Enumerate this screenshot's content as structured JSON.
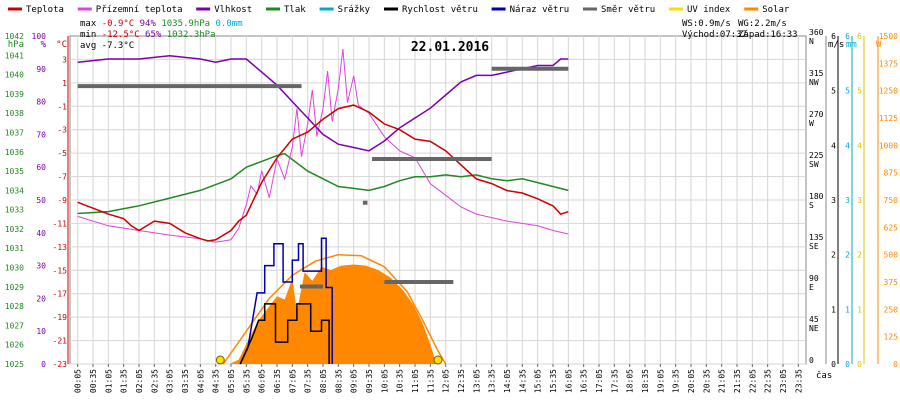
{
  "chart_data": {
    "type": "line",
    "title": "22.01.2016",
    "xlabel": "čas",
    "x_ticks": [
      "00:05",
      "00:35",
      "01:05",
      "01:35",
      "02:05",
      "02:35",
      "03:05",
      "03:35",
      "04:05",
      "04:35",
      "05:05",
      "05:35",
      "06:05",
      "06:35",
      "07:05",
      "07:35",
      "08:05",
      "08:35",
      "09:05",
      "09:35",
      "10:05",
      "10:35",
      "11:05",
      "11:35",
      "12:05",
      "12:35",
      "13:05",
      "13:35",
      "14:05",
      "14:35",
      "15:05",
      "15:35",
      "16:05",
      "16:35",
      "17:05",
      "17:35",
      "18:05",
      "18:35",
      "19:05",
      "19:35",
      "20:05",
      "20:35",
      "21:05",
      "21:35",
      "22:05",
      "22:35",
      "23:05",
      "23:35"
    ],
    "legend": [
      {
        "name": "Teplota",
        "color": "#cc0000"
      },
      {
        "name": "Přízemní teplota",
        "color": "#dd44dd"
      },
      {
        "name": "Vlhkost",
        "color": "#7a00b0"
      },
      {
        "name": "Tlak",
        "color": "#228822"
      },
      {
        "name": "Srážky",
        "color": "#00aacc"
      },
      {
        "name": "Rychlost větru",
        "color": "#000000"
      },
      {
        "name": "Náraz větru",
        "color": "#0000aa"
      },
      {
        "name": "Směr větru",
        "color": "#666666"
      },
      {
        "name": "UV index",
        "color": "#ffdd00"
      },
      {
        "name": "Solar",
        "color": "#ff8800"
      }
    ],
    "stats": {
      "max_line": "max -0.9°C  94%  1035.9hPa   0.0mm",
      "min_line": "min -12.5°C 65%  1032.3hPa",
      "avg_line": "avg -7.3°C",
      "ws": "WS:0.9m/s",
      "wg": "WG:2.2m/s",
      "sunrise": "Východ:07:37",
      "sunset": "Západ:16:33"
    },
    "axes": {
      "hpa": {
        "title": "hPa",
        "color": "#228822",
        "min": 1025,
        "max": 1042,
        "ticks": [
          1025,
          1026,
          1027,
          1028,
          1029,
          1030,
          1031,
          1032,
          1033,
          1034,
          1035,
          1036,
          1037,
          1038,
          1039,
          1040,
          1041,
          1042
        ]
      },
      "pct": {
        "title": "%",
        "color": "#7a00b0",
        "min": 0,
        "max": 100,
        "ticks": [
          0,
          10,
          20,
          30,
          40,
          50,
          60,
          70,
          80,
          90,
          100
        ]
      },
      "temp": {
        "title": "°C",
        "color": "#cc0000",
        "min": -23,
        "max": 5,
        "ticks": [
          -23,
          -21,
          -19,
          -17,
          -15,
          -13,
          -11,
          -9,
          -7,
          -5,
          -3,
          -1,
          1,
          3
        ]
      },
      "dir": {
        "min": 0,
        "max": 360,
        "ticks": [
          {
            "v": 0,
            "l": ""
          },
          {
            "v": 45,
            "l": "NE"
          },
          {
            "v": 90,
            "l": "E"
          },
          {
            "v": 135,
            "l": "SE"
          },
          {
            "v": 180,
            "l": "S"
          },
          {
            "v": 225,
            "l": "SW"
          },
          {
            "v": 270,
            "l": "W"
          },
          {
            "v": 315,
            "l": "NW"
          },
          {
            "v": 360,
            "l": "N"
          }
        ]
      },
      "ms": {
        "title": "m/s",
        "color": "#000000",
        "min": 0,
        "max": 6,
        "ticks": [
          0,
          1,
          2,
          3,
          4,
          5,
          6
        ]
      },
      "mm": {
        "title": "mm",
        "color": "#00aacc",
        "min": 0,
        "max": 6,
        "ticks": [
          0,
          1,
          2,
          3,
          4,
          5,
          6
        ]
      },
      "uv": {
        "color": "#cccc00",
        "min": 0,
        "max": 6,
        "ticks": [
          0,
          1,
          2,
          3,
          4,
          5,
          6
        ]
      },
      "w": {
        "title": "W",
        "color": "#ff8800",
        "min": 0,
        "max": 1500,
        "ticks": [
          0,
          125,
          250,
          375,
          500,
          625,
          750,
          875,
          1000,
          1125,
          1250,
          1375,
          1500
        ]
      }
    },
    "series": {
      "temperature": [
        [
          0,
          -9.2
        ],
        [
          1,
          -9.7
        ],
        [
          2,
          -10.2
        ],
        [
          3,
          -10.6
        ],
        [
          3.5,
          -11.2
        ],
        [
          4,
          -11.6
        ],
        [
          5,
          -10.8
        ],
        [
          6,
          -11.0
        ],
        [
          7,
          -11.8
        ],
        [
          8,
          -12.3
        ],
        [
          8.5,
          -12.5
        ],
        [
          9,
          -12.4
        ],
        [
          10,
          -11.6
        ],
        [
          10.5,
          -10.8
        ],
        [
          11,
          -10.3
        ],
        [
          12,
          -7.5
        ],
        [
          13,
          -5.4
        ],
        [
          14,
          -3.8
        ],
        [
          15,
          -3.2
        ],
        [
          16,
          -2.1
        ],
        [
          17,
          -1.2
        ],
        [
          18,
          -0.9
        ],
        [
          19,
          -1.5
        ],
        [
          20,
          -2.5
        ],
        [
          21,
          -3.0
        ],
        [
          22,
          -3.8
        ],
        [
          23,
          -4.0
        ],
        [
          24,
          -4.8
        ],
        [
          25,
          -6.0
        ],
        [
          26,
          -7.2
        ],
        [
          27,
          -7.6
        ],
        [
          28,
          -8.2
        ],
        [
          29,
          -8.4
        ],
        [
          30,
          -8.9
        ],
        [
          31,
          -9.5
        ],
        [
          31.5,
          -10.2
        ],
        [
          32,
          -10.0
        ]
      ],
      "ground_temperature": [
        [
          0,
          -10.4
        ],
        [
          2,
          -11.2
        ],
        [
          4,
          -11.6
        ],
        [
          6,
          -12.0
        ],
        [
          8,
          -12.3
        ],
        [
          9,
          -12.6
        ],
        [
          10,
          -12.4
        ],
        [
          10.5,
          -11.4
        ],
        [
          11,
          -9.4
        ],
        [
          11.3,
          -7.8
        ],
        [
          11.7,
          -8.5
        ],
        [
          12,
          -6.5
        ],
        [
          12.5,
          -8.8
        ],
        [
          13,
          -5.5
        ],
        [
          13.5,
          -7.2
        ],
        [
          14,
          -4.5
        ],
        [
          14.3,
          -1.2
        ],
        [
          14.6,
          -5.3
        ],
        [
          15,
          -2.5
        ],
        [
          15.3,
          0.4
        ],
        [
          15.6,
          -3.6
        ],
        [
          16,
          -1.2
        ],
        [
          16.3,
          2.0
        ],
        [
          16.6,
          -2.3
        ],
        [
          17,
          0.5
        ],
        [
          17.3,
          3.9
        ],
        [
          17.6,
          -0.7
        ],
        [
          18,
          1.6
        ],
        [
          18.3,
          -0.9
        ],
        [
          19,
          -1.6
        ],
        [
          20,
          -3.6
        ],
        [
          21,
          -4.8
        ],
        [
          22,
          -5.4
        ],
        [
          23,
          -7.6
        ],
        [
          24,
          -8.6
        ],
        [
          25,
          -9.6
        ],
        [
          26,
          -10.2
        ],
        [
          28,
          -10.8
        ],
        [
          30,
          -11.2
        ],
        [
          31,
          -11.6
        ],
        [
          32,
          -11.9
        ]
      ],
      "humidity": [
        [
          0,
          92
        ],
        [
          2,
          93
        ],
        [
          4,
          93
        ],
        [
          6,
          94
        ],
        [
          8,
          93
        ],
        [
          9,
          92
        ],
        [
          10,
          93
        ],
        [
          11,
          93
        ],
        [
          12,
          89
        ],
        [
          13,
          85
        ],
        [
          14,
          80
        ],
        [
          15,
          75
        ],
        [
          16,
          70
        ],
        [
          17,
          67
        ],
        [
          18,
          66
        ],
        [
          19,
          65
        ],
        [
          20,
          68
        ],
        [
          21,
          72
        ],
        [
          22,
          75
        ],
        [
          23,
          78
        ],
        [
          24,
          82
        ],
        [
          25,
          86
        ],
        [
          26,
          88
        ],
        [
          27,
          88
        ],
        [
          28,
          89
        ],
        [
          29,
          90
        ],
        [
          30,
          91
        ],
        [
          31,
          91
        ],
        [
          31.5,
          93
        ],
        [
          32,
          93
        ]
      ],
      "pressure": [
        [
          0,
          1032.8
        ],
        [
          2,
          1032.9
        ],
        [
          4,
          1033.2
        ],
        [
          6,
          1033.6
        ],
        [
          8,
          1034.0
        ],
        [
          10,
          1034.6
        ],
        [
          11,
          1035.2
        ],
        [
          12,
          1035.5
        ],
        [
          13,
          1035.8
        ],
        [
          13.5,
          1035.9
        ],
        [
          14,
          1035.6
        ],
        [
          15,
          1035.0
        ],
        [
          16,
          1034.6
        ],
        [
          17,
          1034.2
        ],
        [
          18,
          1034.1
        ],
        [
          19,
          1034.0
        ],
        [
          20,
          1034.2
        ],
        [
          21,
          1034.5
        ],
        [
          22,
          1034.7
        ],
        [
          23,
          1034.7
        ],
        [
          24,
          1034.8
        ],
        [
          25,
          1034.7
        ],
        [
          26,
          1034.8
        ],
        [
          27,
          1034.6
        ],
        [
          28,
          1034.5
        ],
        [
          29,
          1034.6
        ],
        [
          30,
          1034.4
        ],
        [
          31,
          1034.2
        ],
        [
          32,
          1034.0
        ]
      ],
      "wind_speed": [
        [
          10.6,
          0
        ],
        [
          11.4,
          0.5
        ],
        [
          11.8,
          0.8
        ],
        [
          12.2,
          0.8
        ],
        [
          12.2,
          1.1
        ],
        [
          12.9,
          1.1
        ],
        [
          12.9,
          0.4
        ],
        [
          13.7,
          0.4
        ],
        [
          13.7,
          0.8
        ],
        [
          14.3,
          0.8
        ],
        [
          14.3,
          1.1
        ],
        [
          15.2,
          1.1
        ],
        [
          15.2,
          0.6
        ],
        [
          15.9,
          0.6
        ],
        [
          15.9,
          0.8
        ],
        [
          16.4,
          0.8
        ],
        [
          16.4,
          0
        ]
      ],
      "wind_gust": [
        [
          10.6,
          0
        ],
        [
          11.1,
          0.3
        ],
        [
          11.7,
          1.3
        ],
        [
          12.2,
          1.3
        ],
        [
          12.2,
          1.8
        ],
        [
          12.8,
          1.8
        ],
        [
          12.8,
          2.2
        ],
        [
          13.4,
          2.2
        ],
        [
          13.4,
          1.5
        ],
        [
          14.0,
          1.5
        ],
        [
          14.0,
          1.9
        ],
        [
          14.4,
          1.9
        ],
        [
          14.4,
          2.2
        ],
        [
          14.7,
          2.2
        ],
        [
          14.7,
          1.7
        ],
        [
          15.3,
          1.7
        ],
        [
          15.3,
          1.7
        ],
        [
          15.9,
          1.7
        ],
        [
          15.9,
          2.3
        ],
        [
          16.2,
          2.3
        ],
        [
          16.2,
          1.4
        ],
        [
          16.6,
          1.4
        ],
        [
          16.6,
          0
        ]
      ],
      "wind_direction": [
        {
          "x0": 0,
          "x1": 14.6,
          "v": 305
        },
        {
          "x0": 14.5,
          "x1": 16.0,
          "v": 85
        },
        {
          "x0": 20.0,
          "x1": 24.5,
          "v": 90
        },
        {
          "x0": 18.6,
          "x1": 18.9,
          "v": 177
        },
        {
          "x0": 19.2,
          "x1": 27.0,
          "v": 225
        },
        {
          "x0": 27.0,
          "x1": 32.0,
          "v": 324
        }
      ],
      "solar": [
        [
          9.9,
          0
        ],
        [
          10.5,
          20
        ],
        [
          11.2,
          120
        ],
        [
          11.8,
          200
        ],
        [
          12.4,
          255
        ],
        [
          13.0,
          310
        ],
        [
          13.5,
          295
        ],
        [
          14.0,
          390
        ],
        [
          14.3,
          240
        ],
        [
          14.8,
          420
        ],
        [
          15.3,
          380
        ],
        [
          15.9,
          445
        ],
        [
          16.5,
          430
        ],
        [
          17.2,
          450
        ],
        [
          18.0,
          455
        ],
        [
          18.8,
          450
        ],
        [
          19.6,
          430
        ],
        [
          20.4,
          395
        ],
        [
          21.2,
          340
        ],
        [
          21.9,
          270
        ],
        [
          22.5,
          185
        ],
        [
          23.0,
          90
        ],
        [
          23.4,
          0
        ]
      ],
      "solar_theoretical": [
        [
          9.5,
          0
        ],
        [
          11,
          150
        ],
        [
          12.5,
          300
        ],
        [
          14,
          405
        ],
        [
          15.5,
          470
        ],
        [
          17,
          500
        ],
        [
          18.5,
          495
        ],
        [
          20,
          445
        ],
        [
          21.5,
          330
        ],
        [
          22.5,
          200
        ],
        [
          23.5,
          60
        ],
        [
          24,
          0
        ]
      ],
      "uv_markers": [
        {
          "x": 9.3,
          "v": 0
        },
        {
          "x": 23.5,
          "v": 0
        }
      ]
    }
  }
}
